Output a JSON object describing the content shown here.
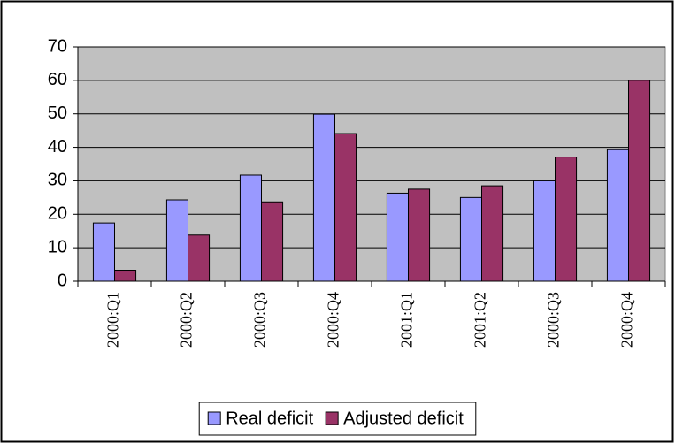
{
  "chart_data": {
    "type": "bar",
    "categories": [
      "2000:Q1",
      "2000:Q2",
      "2000:Q3",
      "2000:Q4",
      "2001:Q1",
      "2001:Q2",
      "2000:Q3",
      "2000:Q4"
    ],
    "series": [
      {
        "name": "Real deficit",
        "color": "#9999ff",
        "values": [
          17.4,
          24.3,
          31.7,
          49.9,
          26.3,
          25,
          30,
          39.3
        ]
      },
      {
        "name": "Adjusted deficit",
        "color": "#993366",
        "values": [
          3.3,
          13.8,
          23.7,
          44.1,
          27.5,
          28.5,
          37.1,
          60
        ]
      }
    ],
    "ylim": [
      0,
      70
    ],
    "yticks": [
      0,
      10,
      20,
      30,
      40,
      50,
      60,
      70
    ],
    "grid": true,
    "legend": "bottom"
  }
}
